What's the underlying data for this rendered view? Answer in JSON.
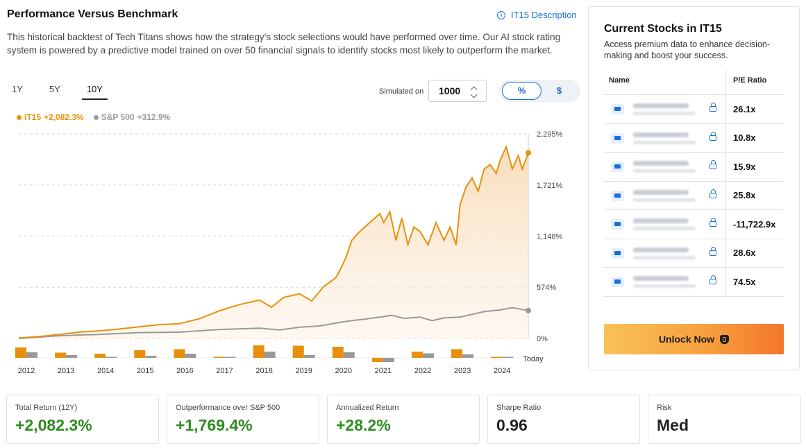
{
  "header": {
    "title": "Performance Versus Benchmark",
    "description_link": "IT15 Description",
    "description": "This historical backtest of Tech Titans shows how the strategy's stock selections would have performed over time. Our AI stock rating system is powered by a predictive model trained on over 50 financial signals to identify stocks most likely to outperform the market."
  },
  "controls": {
    "periods": [
      "1Y",
      "5Y",
      "10Y"
    ],
    "active_period": "10Y",
    "simulated_label": "Simulated on",
    "simulated_value": "1000",
    "units": [
      "%",
      "$"
    ],
    "active_unit": "%"
  },
  "legend": {
    "it15": {
      "name": "IT15",
      "value": "+2,082.3%"
    },
    "sp500": {
      "name": "S&P 500",
      "value": "+312.9%"
    }
  },
  "colors": {
    "it15": "#e8900c",
    "sp500": "#999999",
    "positive": "#2e8b1f",
    "accent": "#1a6fd6"
  },
  "chart_data": {
    "type": "line",
    "y_ticks": [
      "2,295%",
      "1,721%",
      "1,148%",
      "574%",
      "0%"
    ],
    "y_tick_values": [
      2295,
      1721,
      1148,
      574,
      0
    ],
    "ylim": [
      0,
      2295
    ],
    "x_labels": [
      "2012",
      "2013",
      "2014",
      "2015",
      "2016",
      "2017",
      "2018",
      "2019",
      "2020",
      "2021",
      "2022",
      "2023",
      "2024",
      "Today"
    ],
    "grid": true,
    "series": [
      {
        "name": "IT15",
        "x": [
          2012.0,
          2012.5,
          2013.0,
          2013.5,
          2014.0,
          2014.5,
          2015.0,
          2015.5,
          2016.0,
          2016.5,
          2017.0,
          2017.5,
          2018.0,
          2018.3,
          2018.6,
          2018.9,
          2019.0,
          2019.3,
          2019.6,
          2019.9,
          2020.0,
          2020.15,
          2020.3,
          2020.5,
          2020.75,
          2021.0,
          2021.1,
          2021.25,
          2021.4,
          2021.55,
          2021.7,
          2021.85,
          2022.0,
          2022.2,
          2022.4,
          2022.6,
          2022.75,
          2022.9,
          2023.0,
          2023.15,
          2023.3,
          2023.45,
          2023.6,
          2023.75,
          2023.9,
          2024.0,
          2024.15,
          2024.3,
          2024.45,
          2024.55,
          2024.7
        ],
        "values": [
          5,
          20,
          45,
          70,
          85,
          105,
          130,
          155,
          165,
          220,
          310,
          380,
          430,
          350,
          460,
          490,
          500,
          420,
          580,
          680,
          760,
          900,
          1100,
          1200,
          1300,
          1400,
          1300,
          1420,
          1100,
          1350,
          1050,
          1250,
          1200,
          1050,
          1300,
          1100,
          1250,
          1050,
          1500,
          1700,
          1800,
          1650,
          1900,
          1950,
          1850,
          2000,
          2150,
          1900,
          2050,
          1900,
          2082
        ]
      },
      {
        "name": "S&P 500",
        "x": [
          2012.0,
          2013.0,
          2014.0,
          2015.0,
          2016.0,
          2017.0,
          2018.0,
          2018.5,
          2019.0,
          2019.5,
          2020.0,
          2020.3,
          2020.6,
          2021.0,
          2021.3,
          2021.6,
          2022.0,
          2022.3,
          2022.6,
          2023.0,
          2023.3,
          2023.6,
          2024.0,
          2024.3,
          2024.7
        ],
        "values": [
          0,
          30,
          45,
          65,
          70,
          100,
          115,
          95,
          125,
          140,
          180,
          200,
          215,
          240,
          260,
          225,
          240,
          200,
          230,
          240,
          270,
          300,
          320,
          345,
          313
        ]
      }
    ],
    "annual_returns": {
      "years": [
        "2012",
        "2013",
        "2014",
        "2015",
        "2016",
        "2017",
        "2018",
        "2019",
        "2020",
        "2021",
        "2022",
        "2023",
        "2024"
      ],
      "it15": [
        30,
        15,
        12,
        22,
        25,
        2,
        36,
        35,
        32,
        -12,
        18,
        25,
        3
      ],
      "sp500": [
        16,
        8,
        1,
        6,
        12,
        2,
        18,
        8,
        16,
        -12,
        13,
        10,
        0
      ]
    }
  },
  "panel": {
    "title": "Current Stocks in IT15",
    "subtitle": "Access premium data to enhance decision-making and boost your success.",
    "col_name": "Name",
    "col_pe": "P/E Ratio",
    "rows": [
      "26.1x",
      "10.8x",
      "15.9x",
      "25.8x",
      "-11,722.9x",
      "28.6x",
      "74.5x"
    ],
    "unlock_label": "Unlock Now"
  },
  "stats": [
    {
      "label": "Total Return (12Y)",
      "value": "+2,082.3%",
      "tone": "pos"
    },
    {
      "label": "Outperformance over S&P 500",
      "value": "+1,769.4%",
      "tone": "pos"
    },
    {
      "label": "Annualized Return",
      "value": "+28.2%",
      "tone": "pos"
    },
    {
      "label": "Sharpe Ratio",
      "value": "0.96",
      "tone": "neu"
    },
    {
      "label": "Risk",
      "value": "Med",
      "tone": "neu"
    }
  ]
}
